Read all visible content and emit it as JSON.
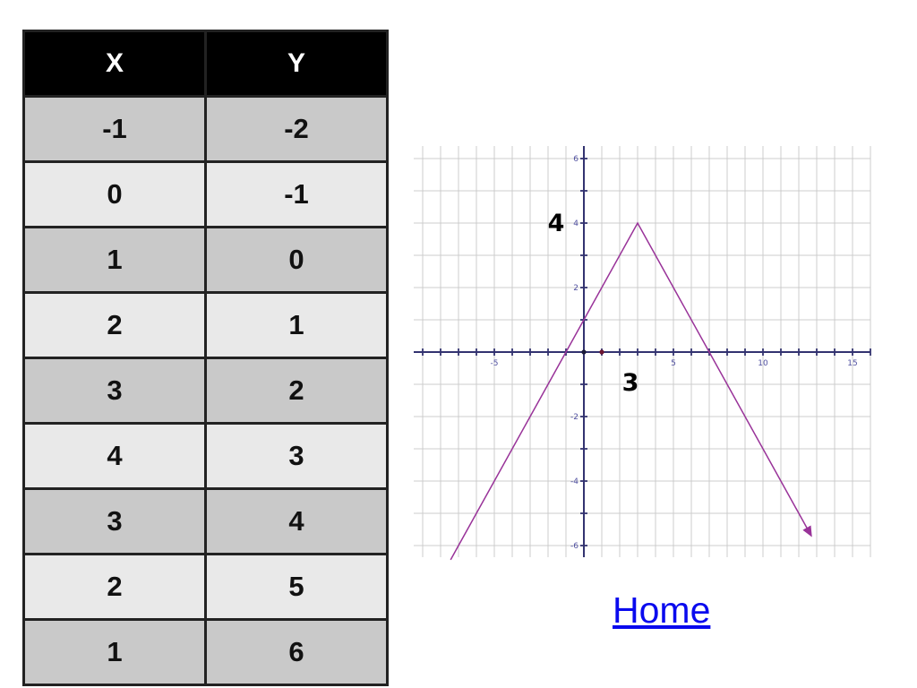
{
  "table": {
    "headers": [
      "X",
      "Y"
    ],
    "rows": [
      {
        "x": "-1",
        "y": "-2"
      },
      {
        "x": "0",
        "y": "-1"
      },
      {
        "x": "1",
        "y": "0"
      },
      {
        "x": "2",
        "y": "1"
      },
      {
        "x": "3",
        "y": "2"
      },
      {
        "x": "4",
        "y": "3"
      },
      {
        "x": "3",
        "y": "4"
      },
      {
        "x": "2",
        "y": "5"
      },
      {
        "x": "1",
        "y": "6"
      }
    ],
    "colors": {
      "header_bg": "#000000",
      "header_text": "#ffffff",
      "row_odd": "#c9c9c9",
      "row_even": "#e9e9e9",
      "border": "#222222"
    }
  },
  "chart_data": {
    "type": "line",
    "title": "",
    "xlabel": "",
    "ylabel": "",
    "xlim": [
      -9.5,
      16
    ],
    "ylim": [
      -6.4,
      6.4
    ],
    "grid": true,
    "x_ticks_all": {
      "min": -9,
      "max": 16
    },
    "y_ticks_all": {
      "min": -6,
      "max": 6
    },
    "x_tick_labels": [
      -5,
      5,
      10,
      15
    ],
    "y_tick_labels": [
      6,
      4,
      2,
      -2,
      -4,
      -6
    ],
    "series": [
      {
        "name": "absolute-value-graph",
        "color": "#993399",
        "points": [
          [
            -7.44,
            -6.44
          ],
          [
            3,
            4
          ],
          [
            12.7,
            -5.7
          ]
        ],
        "vertex": [
          3,
          4
        ],
        "x_intercepts": [
          -1,
          7
        ],
        "arrow_end": true
      }
    ],
    "point_markers": [
      {
        "x": 0,
        "y": 0,
        "color": "#1b1b3a"
      },
      {
        "x": 1,
        "y": 0,
        "color": "#6b1530"
      }
    ],
    "annotations": [
      {
        "text": "4",
        "x": -1.55,
        "y": 4.0
      },
      {
        "text": "3",
        "x": 2.6,
        "y": -0.95
      }
    ],
    "colors": {
      "axis": "#333370",
      "tick_label": "#5050a0",
      "grid": "#cccccc"
    }
  },
  "link": {
    "label": "Home",
    "color": "#0a0aee"
  }
}
